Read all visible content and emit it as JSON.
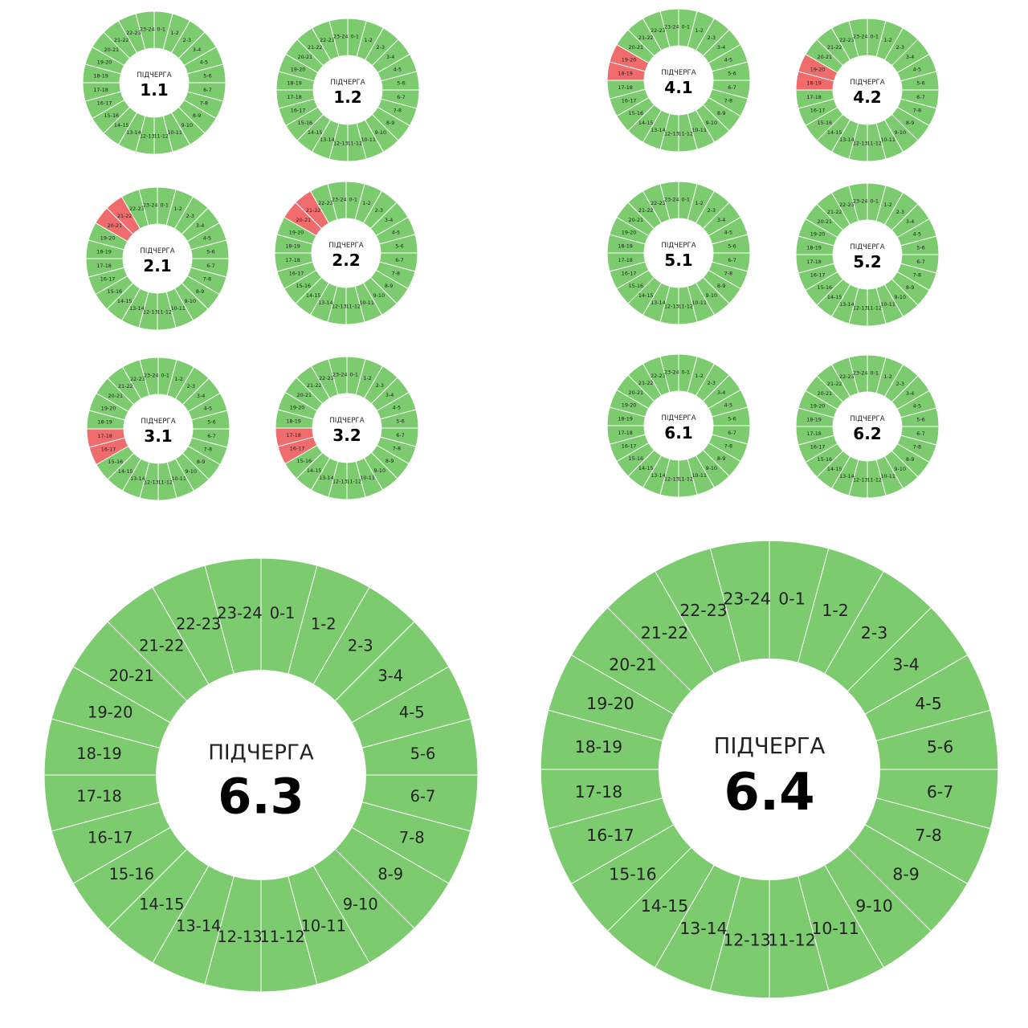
{
  "colors": {
    "on": "#7CCB6E",
    "off": "#F06B6B",
    "background": "#FFFFFF",
    "separator": "#FFFFFF"
  },
  "center_title": "ПІДЧЕРГА",
  "hour_labels": [
    "0-1",
    "1-2",
    "2-3",
    "3-4",
    "4-5",
    "5-6",
    "6-7",
    "7-8",
    "8-9",
    "9-10",
    "10-11",
    "11-12",
    "12-13",
    "13-14",
    "14-15",
    "15-16",
    "16-17",
    "17-18",
    "18-19",
    "19-20",
    "20-21",
    "21-22",
    "22-23",
    "23-24"
  ],
  "queues": [
    {
      "number": "1.1",
      "off_hours": []
    },
    {
      "number": "1.2",
      "off_hours": []
    },
    {
      "number": "2.1",
      "off_hours": [
        "20-21",
        "21-22"
      ]
    },
    {
      "number": "2.2",
      "off_hours": [
        "20-21",
        "21-22"
      ]
    },
    {
      "number": "3.1",
      "off_hours": [
        "16-17",
        "17-18"
      ]
    },
    {
      "number": "3.2",
      "off_hours": [
        "16-17",
        "17-18"
      ]
    },
    {
      "number": "4.1",
      "off_hours": [
        "18-19",
        "19-20"
      ]
    },
    {
      "number": "4.2",
      "off_hours": [
        "18-19",
        "19-20"
      ]
    },
    {
      "number": "5.1",
      "off_hours": []
    },
    {
      "number": "5.2",
      "off_hours": []
    },
    {
      "number": "6.1",
      "off_hours": []
    },
    {
      "number": "6.2",
      "off_hours": []
    },
    {
      "number": "6.3",
      "off_hours": []
    },
    {
      "number": "6.4",
      "off_hours": []
    }
  ]
}
